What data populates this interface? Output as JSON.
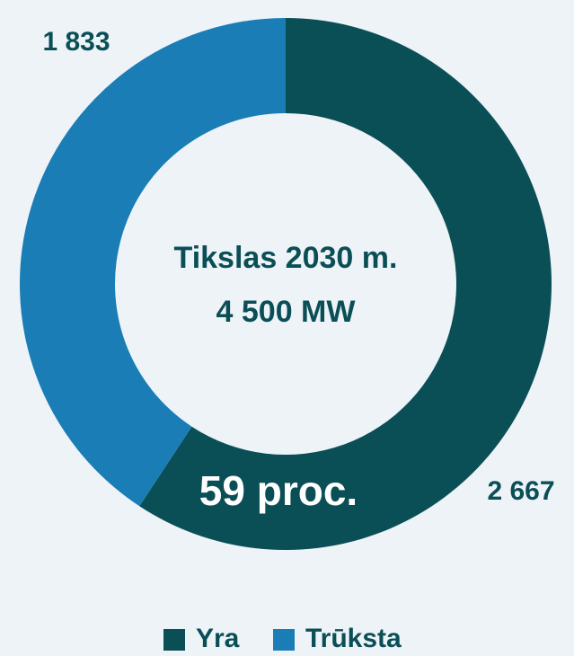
{
  "chart_data": {
    "type": "donut",
    "categories": [
      "Yra",
      "Trūksta"
    ],
    "values": [
      2667,
      1833
    ],
    "value_labels": [
      "2 667",
      "1 833"
    ],
    "colors": [
      "#0b4f56",
      "#1a7db5"
    ],
    "center_text": [
      "Tikslas 2030 m.",
      "4 500 MW"
    ],
    "annotation": "59 proc.",
    "legend": "bottom"
  }
}
